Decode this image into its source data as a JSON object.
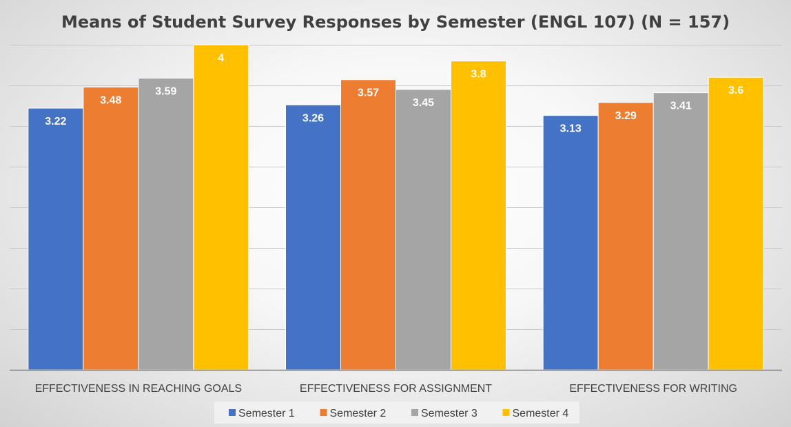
{
  "chart_data": {
    "type": "bar",
    "title": "Means of Student Survey Responses by Semester (ENGL 107) (N = 157)",
    "categories": [
      "EFFECTIVENESS IN REACHING GOALS",
      "EFFECTIVENESS FOR ASSIGNMENT",
      "EFFECTIVENESS FOR WRITING"
    ],
    "series": [
      {
        "name": "Semester 1",
        "color": "#4472c4",
        "values": [
          3.22,
          3.26,
          3.13
        ],
        "labels": [
          "3.22",
          "3.26",
          "3.13"
        ]
      },
      {
        "name": "Semester 2",
        "color": "#ed7d31",
        "values": [
          3.48,
          3.57,
          3.29
        ],
        "labels": [
          "3.48",
          "3.57",
          "3.29"
        ]
      },
      {
        "name": "Semester 3",
        "color": "#a5a5a5",
        "values": [
          3.59,
          3.45,
          3.41
        ],
        "labels": [
          "3.59",
          "3.45",
          "3.41"
        ]
      },
      {
        "name": "Semester 4",
        "color": "#ffc000",
        "values": [
          4,
          3.8,
          3.6
        ],
        "labels": [
          "4",
          "3.8",
          "3.6"
        ]
      }
    ],
    "ylim": [
      0,
      4
    ],
    "gridlines": [
      0,
      0.5,
      1,
      1.5,
      2,
      2.5,
      3,
      3.5,
      4
    ],
    "y_tick_labels_shown": false,
    "grid": true,
    "legend_position": "bottom",
    "xlabel": "",
    "ylabel": ""
  }
}
